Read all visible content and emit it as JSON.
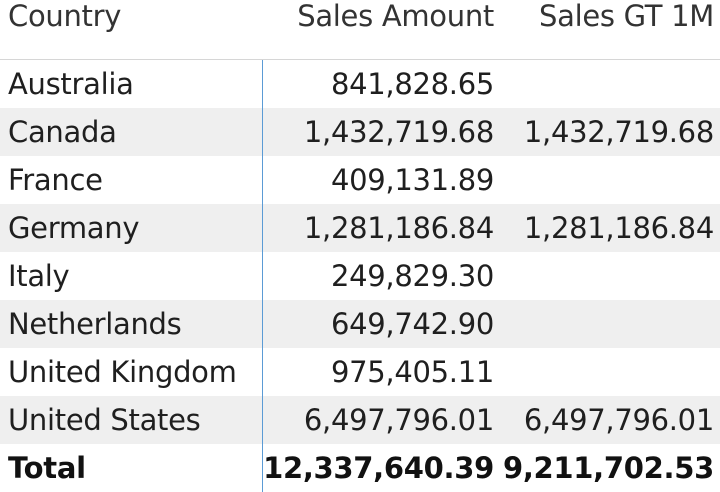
{
  "columns": [
    "Country",
    "Sales Amount",
    "Sales GT 1M"
  ],
  "rows": [
    {
      "country": "Australia",
      "sales_amount": "841,828.65",
      "sales_gt_1m": ""
    },
    {
      "country": "Canada",
      "sales_amount": "1,432,719.68",
      "sales_gt_1m": "1,432,719.68"
    },
    {
      "country": "France",
      "sales_amount": "409,131.89",
      "sales_gt_1m": ""
    },
    {
      "country": "Germany",
      "sales_amount": "1,281,186.84",
      "sales_gt_1m": "1,281,186.84"
    },
    {
      "country": "Italy",
      "sales_amount": "249,829.30",
      "sales_gt_1m": ""
    },
    {
      "country": "Netherlands",
      "sales_amount": "649,742.90",
      "sales_gt_1m": ""
    },
    {
      "country": "United Kingdom",
      "sales_amount": "975,405.11",
      "sales_gt_1m": ""
    },
    {
      "country": "United States",
      "sales_amount": "6,497,796.01",
      "sales_gt_1m": "6,497,796.01"
    }
  ],
  "total": {
    "label": "Total",
    "sales_amount": "12,337,640.39",
    "sales_gt_1m": "9,211,702.53"
  },
  "colors": {
    "divider": "#5b9bd5",
    "alt_row": "#efefef"
  }
}
